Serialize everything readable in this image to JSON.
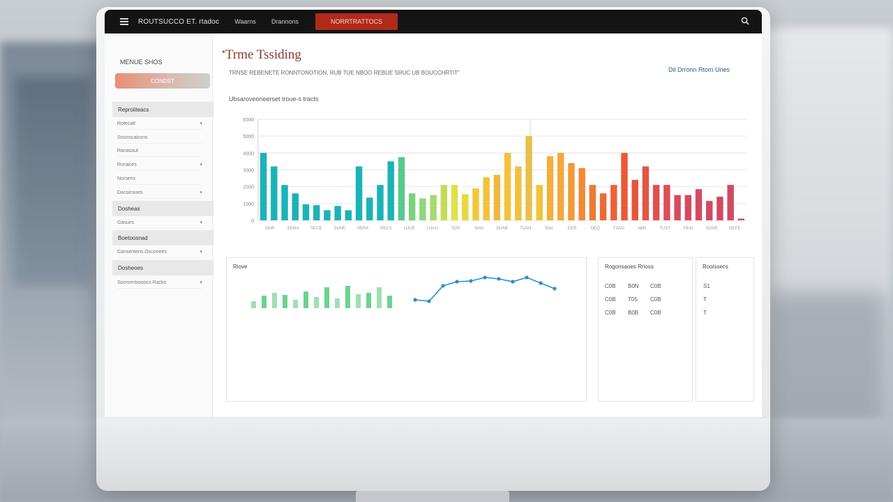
{
  "topbar": {
    "brand": "ROUTSUCCO ET. rtadoc",
    "nav": [
      "Waarns",
      "Drannons"
    ],
    "active_tab": "NORRTRATTOCS",
    "icons": [
      "menu-icon",
      "search-icon"
    ]
  },
  "sidebar": {
    "title": "MENUE SHOS",
    "button": "CONDST",
    "sections": [
      {
        "label": "Reproiiteacs",
        "items": [
          "Rotecatt",
          "Snonscaicons",
          "Ranasaut",
          "Ronaces",
          "Norsens",
          "Dacoinsoes"
        ]
      },
      {
        "label": "Dosheas",
        "items": [
          "Gasuirs"
        ]
      },
      {
        "label": "Boetoosnad",
        "items": [
          "Cansentens Osconees"
        ]
      },
      {
        "label": "Dosheoes",
        "items": [
          "Sooromtosoocs Racks"
        ]
      }
    ]
  },
  "header": {
    "title": "Trme Tssiding",
    "subtitle": "TRNSE REBENETE RONNTONOTION, RUB TUE NBOO REBUE SRUC UB BOUCCHRTIT\"",
    "top_right": "Dil Drronn Rtom Unes"
  },
  "main_chart": {
    "title": "Ubsaroveoneerset troue-s tracts"
  },
  "chart_data": [
    {
      "type": "bar",
      "ylim": [
        0,
        6000
      ],
      "yticks": [
        "0",
        "1000",
        "2000",
        "3000",
        "4000",
        "5000",
        "6000"
      ],
      "xticks": [
        "MAR",
        "SEMA",
        "SECE",
        "SUNE",
        "SERA",
        "RECS",
        "UJUE",
        "UJUU",
        "SOS",
        "NAN",
        "OUNE",
        "TUAN",
        "SIAI",
        "EER",
        "NEQ",
        "TSAO",
        "ABN",
        "TUST",
        "FEAI",
        "SOSR",
        "NCFE"
      ],
      "values": [
        4000,
        3200,
        2100,
        1600,
        950,
        900,
        600,
        850,
        600,
        3200,
        1350,
        2100,
        3500,
        3750,
        1600,
        1300,
        1500,
        2100,
        2100,
        1550,
        1900,
        2550,
        2700,
        4000,
        3200,
        5000,
        2100,
        3800,
        4000,
        3400,
        3100,
        2100,
        1600,
        2100,
        4000,
        2400,
        3200,
        2100,
        2100,
        1500,
        1500,
        1850,
        1150,
        1400,
        2100,
        100
      ],
      "colors": [
        "#1bb3b8",
        "#1bb3b8",
        "#1bb3b8",
        "#1bb3b8",
        "#1bb3b8",
        "#1bb3b8",
        "#1bb3b8",
        "#1bb3b8",
        "#1bb3b8",
        "#1bb3b8",
        "#1bb3b8",
        "#1bb3b8",
        "#1bb3b8",
        "#58c98c",
        "#7ad27d",
        "#8fd67a",
        "#a6da6c",
        "#c2dc5a",
        "#dde24a",
        "#e8d83a",
        "#f0c83a",
        "#f2c23a",
        "#f0b83b",
        "#f2c23a",
        "#f0c040",
        "#e8c04a",
        "#f2c23a",
        "#f2b03a",
        "#f5a83a",
        "#f39a38",
        "#f08a36",
        "#ee7a36",
        "#ec6a36",
        "#ec6238",
        "#ea5a38",
        "#e8553a",
        "#e45544",
        "#e05050",
        "#dc4e58",
        "#d84c5c",
        "#d44a60",
        "#d24a62",
        "#d04a64",
        "#d04a64",
        "#d04a64",
        "#d04a64"
      ]
    },
    {
      "type": "line",
      "bars": [
        10,
        18,
        22,
        19,
        12,
        24,
        16,
        30,
        14,
        32,
        20,
        22,
        30,
        18
      ],
      "line": [
        60,
        62,
        40,
        34,
        33,
        28,
        30,
        34,
        28,
        36,
        44
      ]
    }
  ],
  "trend_panel": {
    "title": "Riove"
  },
  "table_panel": {
    "title": "Rogonsaoes Rrioss",
    "rows": [
      [
        "C0B",
        "B0N",
        "C0B"
      ],
      [
        "C0B",
        "T05",
        "C0B"
      ],
      [
        "C0B",
        "B0B",
        "C0B"
      ]
    ]
  },
  "side_panel": {
    "title": "Rooissecs",
    "rows": [
      "S1",
      "T",
      "T"
    ]
  }
}
